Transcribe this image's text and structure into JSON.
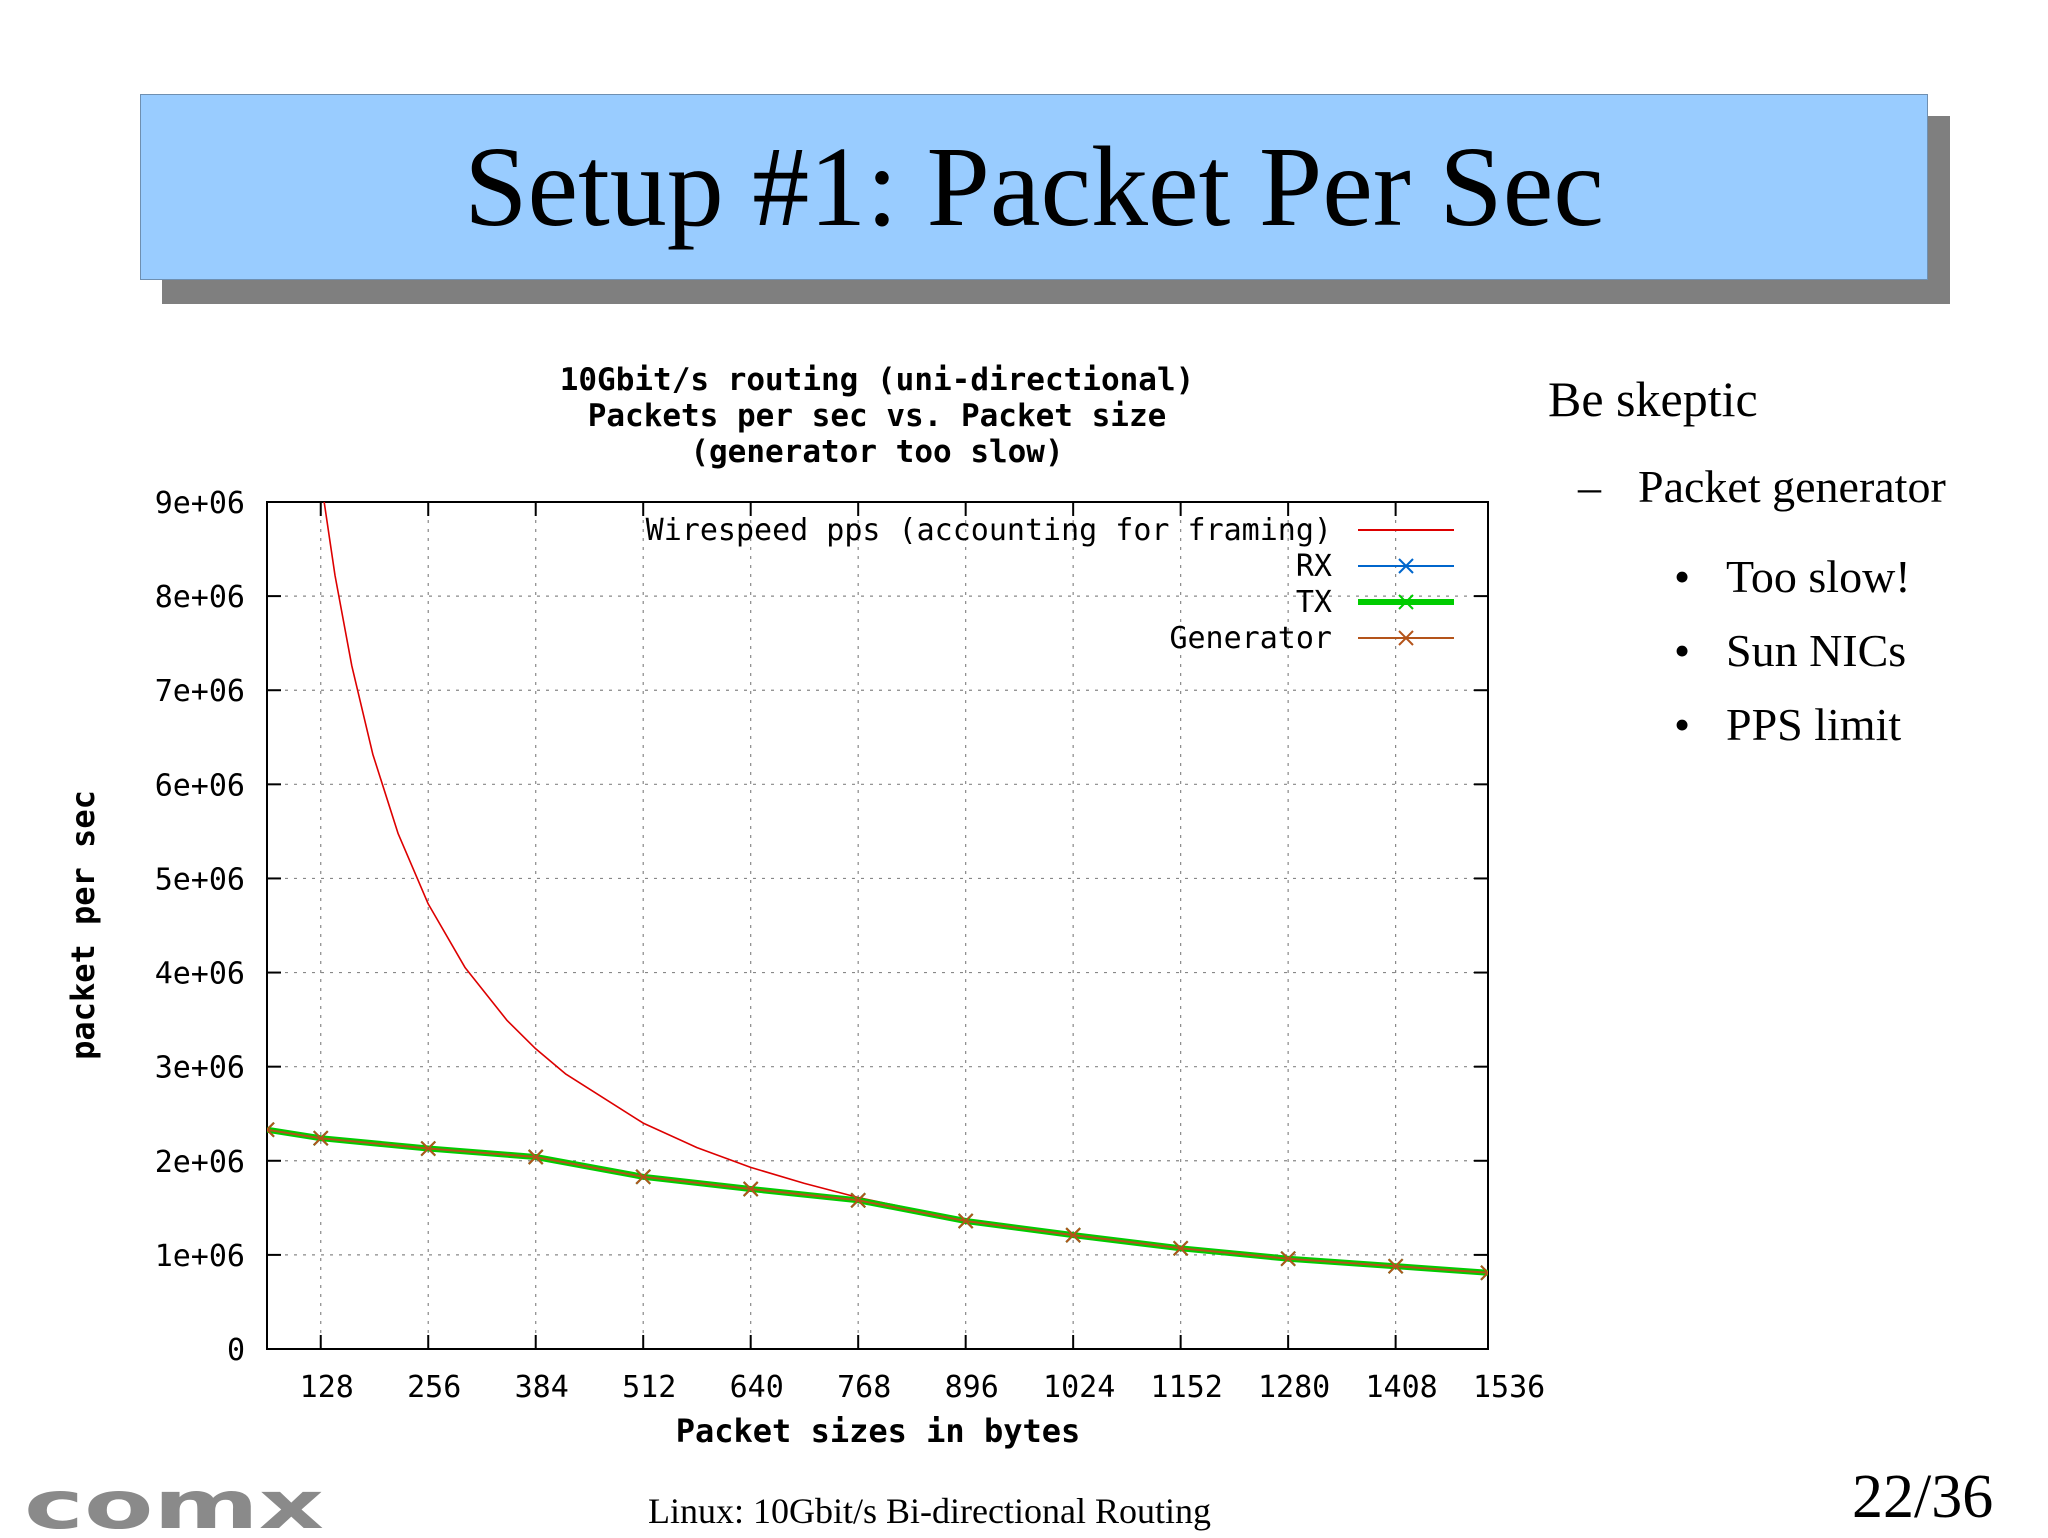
{
  "slide": {
    "title": "Setup #1: Packet Per Sec",
    "footer": "Linux: 10Gbit/s Bi-directional Routing",
    "page_number": "22/36",
    "logo_text": "comx"
  },
  "bullets": {
    "heading": "Be skeptic",
    "dash": "–",
    "sub": "Packet generator",
    "items": [
      "Too slow!",
      "Sun NICs",
      "PPS limit"
    ],
    "bullet_char": "•"
  },
  "chart_data": {
    "type": "line",
    "title_lines": [
      "10Gbit/s routing (uni-directional)",
      "Packets per sec vs. Packet size",
      "(generator too slow)"
    ],
    "xlabel": "Packet sizes in bytes",
    "ylabel": "packet per sec",
    "xlim": [
      64,
      1518
    ],
    "ylim": [
      0,
      9000000
    ],
    "x_ticks": [
      128,
      256,
      384,
      512,
      640,
      768,
      896,
      1024,
      1152,
      1280,
      1408,
      1536
    ],
    "y_ticks": [
      0,
      1000000,
      2000000,
      3000000,
      4000000,
      5000000,
      6000000,
      7000000,
      8000000,
      9000000
    ],
    "y_tick_labels": [
      "0",
      "1e+06",
      "2e+06",
      "3e+06",
      "4e+06",
      "5e+06",
      "6e+06",
      "7e+06",
      "8e+06",
      "9e+06"
    ],
    "grid": true,
    "legend_position": "top-right",
    "series": [
      {
        "name": "Wirespeed pps (accounting for framing)",
        "color": "#dd0000",
        "style": "line",
        "x": [
          116,
          128,
          145,
          165,
          190,
          220,
          256,
          300,
          350,
          384,
          420,
          512,
          576,
          640,
          704,
          768,
          832,
          896,
          960,
          1024,
          1088,
          1152,
          1216,
          1280,
          1344,
          1408,
          1472,
          1518
        ],
        "y": [
          10000000,
          9250000,
          8220000,
          7260000,
          6320000,
          5480000,
          4730000,
          4050000,
          3490000,
          3190000,
          2920000,
          2400000,
          2140000,
          1930000,
          1760000,
          1610000,
          1490000,
          1380000,
          1290000,
          1210000,
          1140000,
          1080000,
          1020000,
          967000,
          922000,
          879000,
          841000,
          815000
        ]
      },
      {
        "name": "RX",
        "color": "#0066cc",
        "style": "linespoints",
        "x": [
          64,
          128,
          256,
          384,
          512,
          640,
          768,
          896,
          1024,
          1152,
          1280,
          1408,
          1518
        ],
        "y": [
          2330000,
          2240000,
          2130000,
          2040000,
          1830000,
          1700000,
          1580000,
          1360000,
          1210000,
          1070000,
          960000,
          880000,
          810000
        ]
      },
      {
        "name": "TX",
        "color": "#00cc00",
        "style": "linespoints",
        "x": [
          64,
          128,
          256,
          384,
          512,
          640,
          768,
          896,
          1024,
          1152,
          1280,
          1408,
          1518
        ],
        "y": [
          2330000,
          2240000,
          2130000,
          2040000,
          1830000,
          1700000,
          1580000,
          1360000,
          1210000,
          1070000,
          960000,
          880000,
          810000
        ]
      },
      {
        "name": "Generator",
        "color": "#b4541a",
        "style": "linespoints",
        "x": [
          64,
          128,
          256,
          384,
          512,
          640,
          768,
          896,
          1024,
          1152,
          1280,
          1408,
          1518
        ],
        "y": [
          2330000,
          2240000,
          2130000,
          2040000,
          1830000,
          1700000,
          1580000,
          1360000,
          1210000,
          1070000,
          960000,
          880000,
          810000
        ]
      }
    ]
  }
}
